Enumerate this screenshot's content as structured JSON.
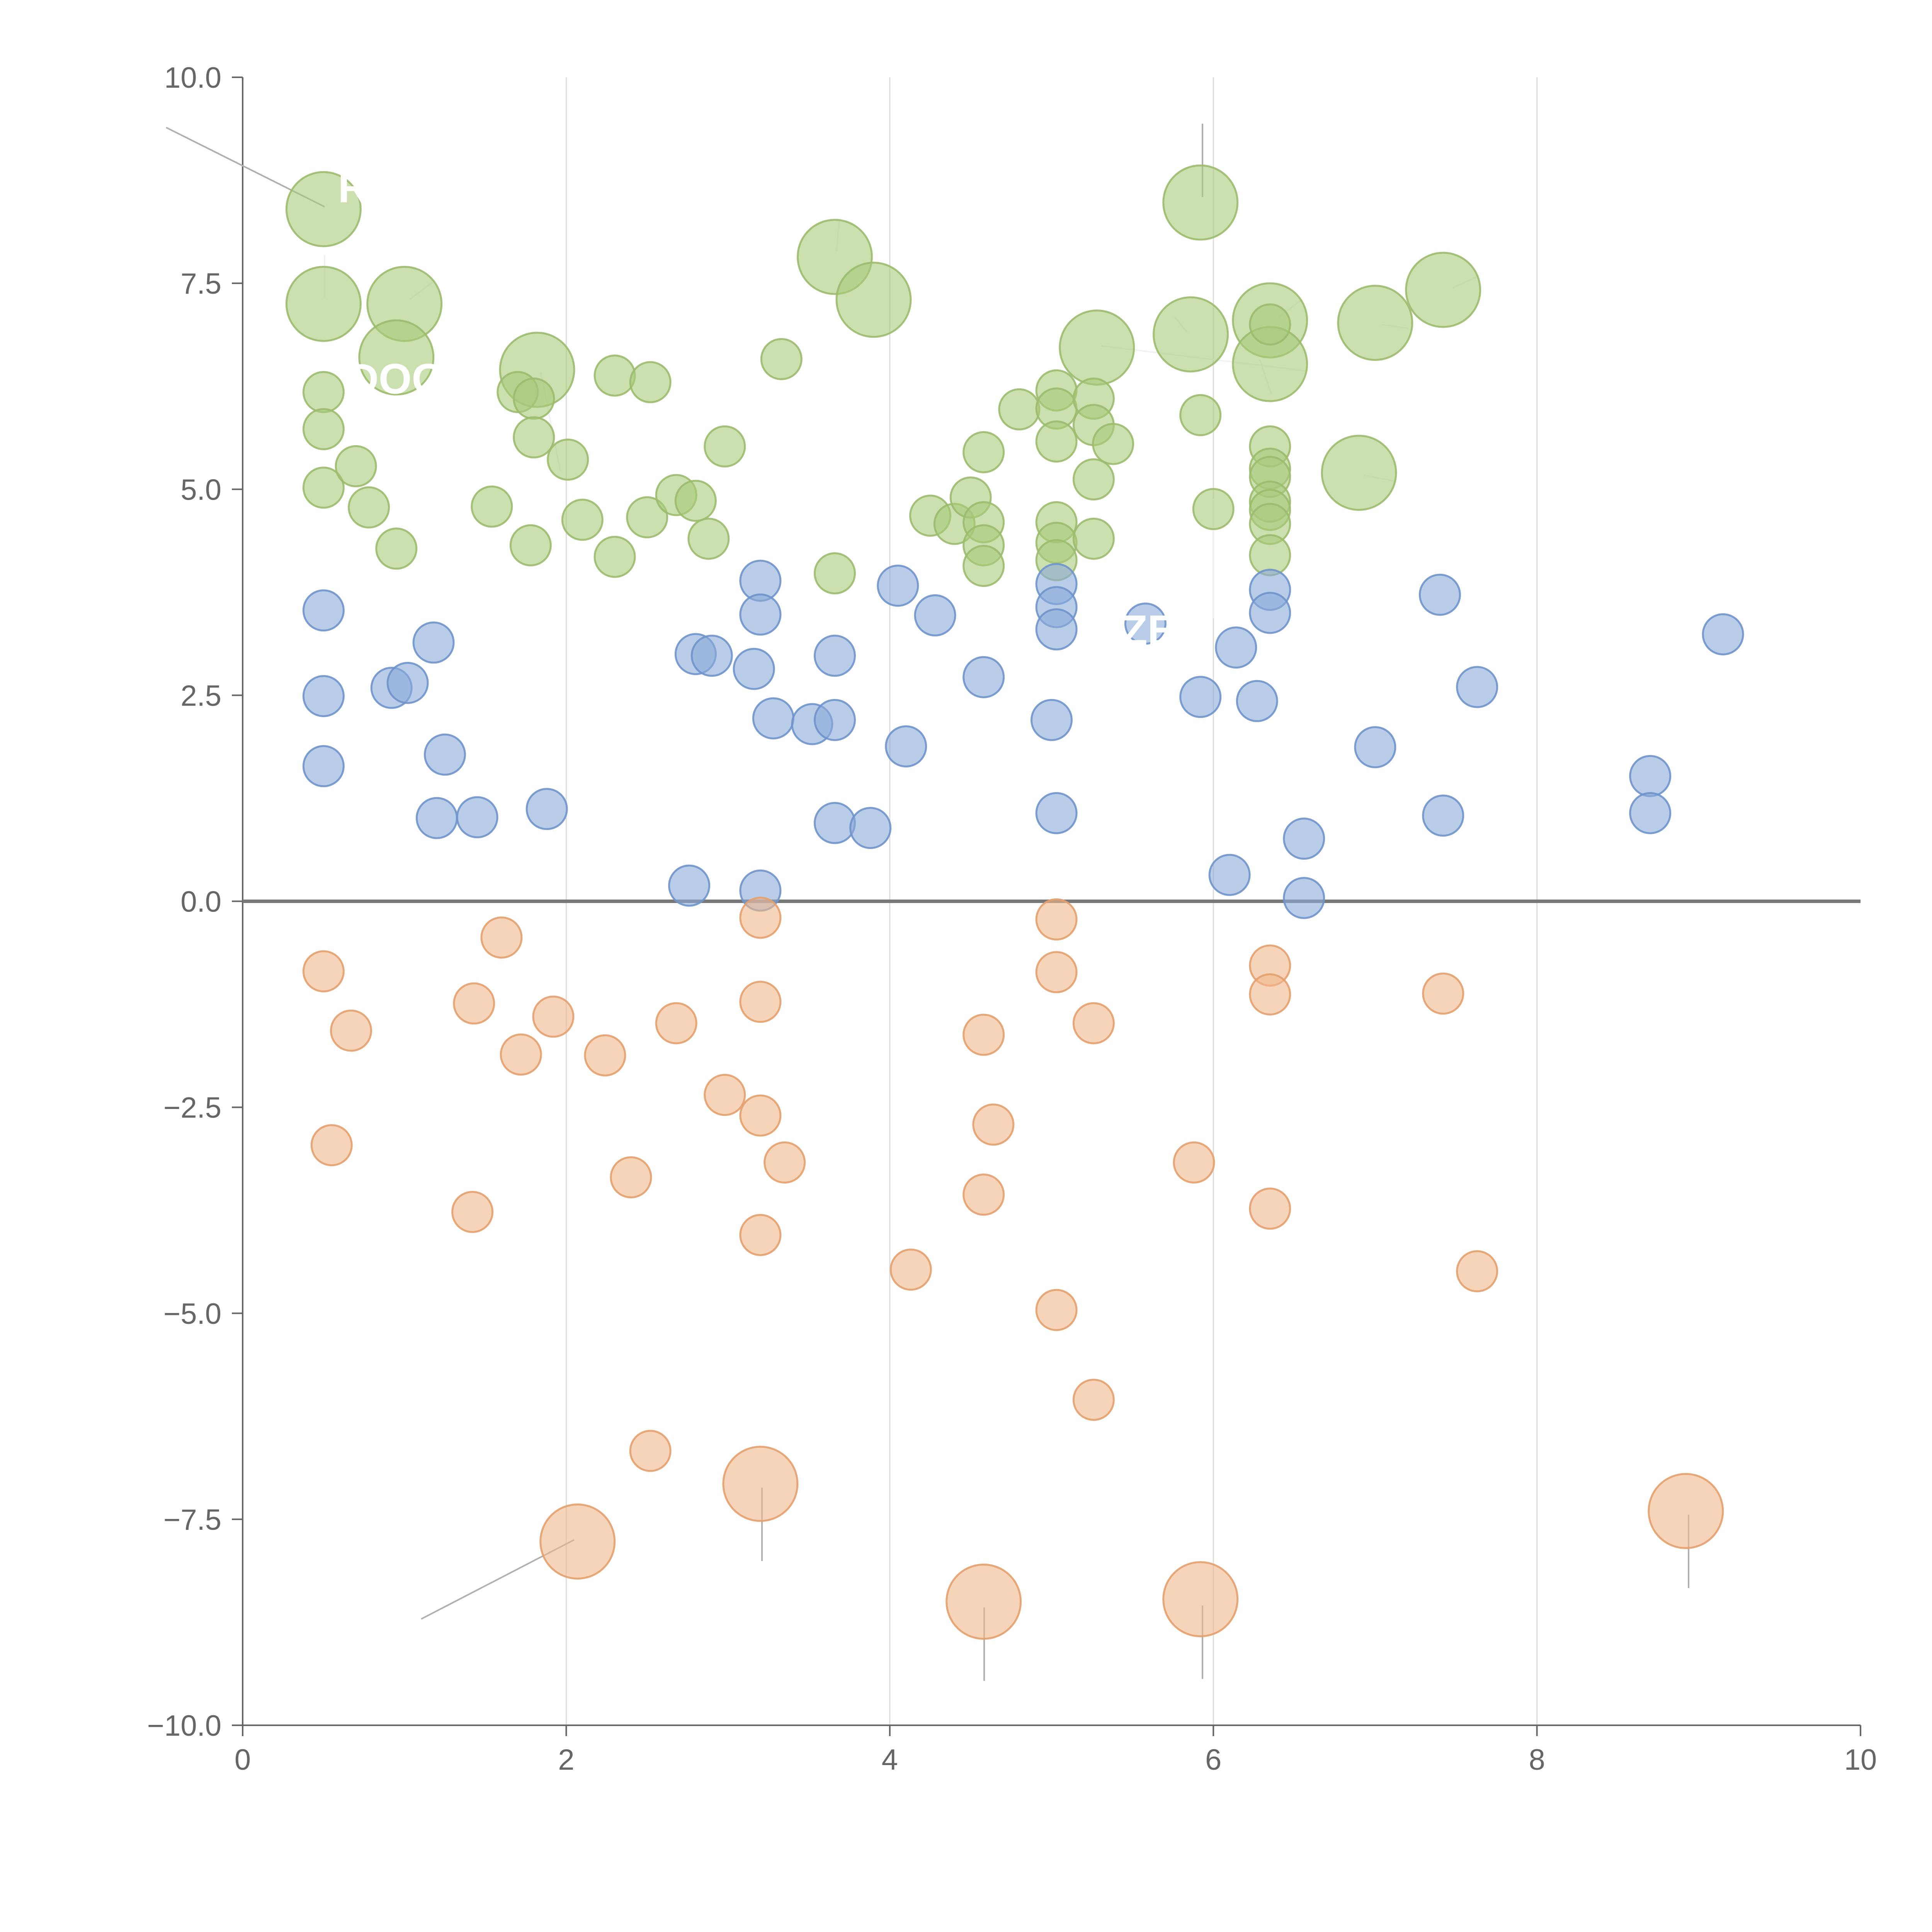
{
  "chart_data": {
    "type": "scatter",
    "title": "",
    "xlabel": "",
    "ylabel": "",
    "xlim": [
      0,
      10
    ],
    "ylim": [
      -10,
      10
    ],
    "x_ticks": [
      "0",
      "2",
      "4",
      "6",
      "8",
      "10"
    ],
    "y_ticks": [
      "−10.0",
      "−7.5",
      "−5.0",
      "−2.5",
      "0.0",
      "2.5",
      "5.0",
      "7.5",
      "10.0"
    ],
    "grid_x": [
      2,
      4,
      6,
      8
    ],
    "zero_line": 0,
    "series": [
      {
        "name": "green",
        "color": "#a9c97a",
        "stroke": "#9cbb6e",
        "points": [
          {
            "x": 0.5,
            "y": 8.4,
            "s": 3
          },
          {
            "x": 0.5,
            "y": 7.25,
            "s": 3
          },
          {
            "x": 1.0,
            "y": 7.25,
            "s": 3
          },
          {
            "x": 0.95,
            "y": 6.6,
            "s": 3
          },
          {
            "x": 1.82,
            "y": 6.45,
            "s": 3
          },
          {
            "x": 3.66,
            "y": 7.82,
            "s": 3
          },
          {
            "x": 3.9,
            "y": 7.3,
            "s": 3
          },
          {
            "x": 5.28,
            "y": 6.72,
            "s": 3
          },
          {
            "x": 5.86,
            "y": 6.88,
            "s": 3
          },
          {
            "x": 5.92,
            "y": 8.48,
            "s": 3
          },
          {
            "x": 6.35,
            "y": 7.05,
            "s": 3
          },
          {
            "x": 6.35,
            "y": 6.52,
            "s": 3
          },
          {
            "x": 7.0,
            "y": 7.02,
            "s": 3
          },
          {
            "x": 7.42,
            "y": 7.42,
            "s": 3
          },
          {
            "x": 6.9,
            "y": 5.2,
            "s": 3
          },
          {
            "x": 0.5,
            "y": 6.18,
            "s": 1
          },
          {
            "x": 0.5,
            "y": 5.73,
            "s": 1
          },
          {
            "x": 0.5,
            "y": 5.02,
            "s": 1
          },
          {
            "x": 0.7,
            "y": 5.28,
            "s": 1
          },
          {
            "x": 0.78,
            "y": 4.78,
            "s": 1
          },
          {
            "x": 0.95,
            "y": 4.28,
            "s": 1
          },
          {
            "x": 1.54,
            "y": 4.79,
            "s": 1
          },
          {
            "x": 1.7,
            "y": 6.18,
            "s": 1
          },
          {
            "x": 1.8,
            "y": 6.1,
            "s": 1
          },
          {
            "x": 1.8,
            "y": 5.63,
            "s": 1
          },
          {
            "x": 1.78,
            "y": 4.32,
            "s": 1
          },
          {
            "x": 2.01,
            "y": 5.36,
            "s": 1
          },
          {
            "x": 2.1,
            "y": 4.63,
            "s": 1
          },
          {
            "x": 2.3,
            "y": 6.38,
            "s": 1
          },
          {
            "x": 2.3,
            "y": 4.18,
            "s": 1
          },
          {
            "x": 2.5,
            "y": 4.66,
            "s": 1
          },
          {
            "x": 2.52,
            "y": 6.3,
            "s": 1
          },
          {
            "x": 2.68,
            "y": 4.93,
            "s": 1
          },
          {
            "x": 2.8,
            "y": 4.86,
            "s": 1
          },
          {
            "x": 2.88,
            "y": 4.4,
            "s": 1
          },
          {
            "x": 2.98,
            "y": 5.52,
            "s": 1
          },
          {
            "x": 3.33,
            "y": 6.58,
            "s": 1
          },
          {
            "x": 3.66,
            "y": 3.98,
            "s": 1
          },
          {
            "x": 4.25,
            "y": 4.68,
            "s": 1
          },
          {
            "x": 4.4,
            "y": 4.58,
            "s": 1
          },
          {
            "x": 4.5,
            "y": 4.9,
            "s": 1
          },
          {
            "x": 4.58,
            "y": 5.45,
            "s": 1
          },
          {
            "x": 4.58,
            "y": 4.6,
            "s": 1
          },
          {
            "x": 4.58,
            "y": 4.32,
            "s": 1
          },
          {
            "x": 4.58,
            "y": 4.07,
            "s": 1
          },
          {
            "x": 4.8,
            "y": 5.97,
            "s": 1
          },
          {
            "x": 5.03,
            "y": 6.2,
            "s": 1
          },
          {
            "x": 5.03,
            "y": 5.98,
            "s": 1
          },
          {
            "x": 5.03,
            "y": 5.58,
            "s": 1
          },
          {
            "x": 5.03,
            "y": 4.6,
            "s": 1
          },
          {
            "x": 5.03,
            "y": 4.35,
            "s": 1
          },
          {
            "x": 5.03,
            "y": 4.14,
            "s": 1
          },
          {
            "x": 5.26,
            "y": 6.1,
            "s": 1
          },
          {
            "x": 5.26,
            "y": 5.78,
            "s": 1
          },
          {
            "x": 5.38,
            "y": 5.55,
            "s": 1
          },
          {
            "x": 5.26,
            "y": 5.12,
            "s": 1
          },
          {
            "x": 5.26,
            "y": 4.4,
            "s": 1
          },
          {
            "x": 5.92,
            "y": 5.9,
            "s": 1
          },
          {
            "x": 6.0,
            "y": 4.76,
            "s": 1
          },
          {
            "x": 6.35,
            "y": 7.0,
            "s": 1
          },
          {
            "x": 6.35,
            "y": 5.52,
            "s": 1
          },
          {
            "x": 6.35,
            "y": 5.25,
            "s": 1
          },
          {
            "x": 6.35,
            "y": 5.15,
            "s": 1
          },
          {
            "x": 6.35,
            "y": 4.85,
            "s": 1
          },
          {
            "x": 6.35,
            "y": 4.75,
            "s": 1
          },
          {
            "x": 6.35,
            "y": 4.58,
            "s": 1
          },
          {
            "x": 6.35,
            "y": 4.2,
            "s": 1
          }
        ]
      },
      {
        "name": "blue",
        "color": "#8aaad8",
        "stroke": "#6f93cb",
        "points": [
          {
            "x": 0.5,
            "y": 3.53,
            "s": 1
          },
          {
            "x": 0.5,
            "y": 2.49,
            "s": 1
          },
          {
            "x": 0.5,
            "y": 1.64,
            "s": 1
          },
          {
            "x": 0.92,
            "y": 2.59,
            "s": 1
          },
          {
            "x": 1.02,
            "y": 2.65,
            "s": 1
          },
          {
            "x": 1.18,
            "y": 3.14,
            "s": 1
          },
          {
            "x": 1.25,
            "y": 1.78,
            "s": 1
          },
          {
            "x": 1.2,
            "y": 1.01,
            "s": 1
          },
          {
            "x": 1.45,
            "y": 1.02,
            "s": 1
          },
          {
            "x": 1.88,
            "y": 1.12,
            "s": 1
          },
          {
            "x": 2.76,
            "y": 0.19,
            "s": 1
          },
          {
            "x": 2.8,
            "y": 3.0,
            "s": 1
          },
          {
            "x": 2.9,
            "y": 2.98,
            "s": 1
          },
          {
            "x": 3.16,
            "y": 2.82,
            "s": 1
          },
          {
            "x": 3.2,
            "y": 3.89,
            "s": 1
          },
          {
            "x": 3.2,
            "y": 3.48,
            "s": 1
          },
          {
            "x": 3.28,
            "y": 2.22,
            "s": 1
          },
          {
            "x": 3.52,
            "y": 2.15,
            "s": 1
          },
          {
            "x": 3.66,
            "y": 2.98,
            "s": 1
          },
          {
            "x": 3.66,
            "y": 2.2,
            "s": 1
          },
          {
            "x": 3.66,
            "y": 0.95,
            "s": 1
          },
          {
            "x": 3.88,
            "y": 0.89,
            "s": 1
          },
          {
            "x": 3.2,
            "y": 0.13,
            "s": 1
          },
          {
            "x": 4.05,
            "y": 3.83,
            "s": 1
          },
          {
            "x": 4.1,
            "y": 1.88,
            "s": 1
          },
          {
            "x": 4.28,
            "y": 3.47,
            "s": 1
          },
          {
            "x": 4.58,
            "y": 2.72,
            "s": 1
          },
          {
            "x": 5.03,
            "y": 3.85,
            "s": 1
          },
          {
            "x": 5.03,
            "y": 3.57,
            "s": 1
          },
          {
            "x": 5.03,
            "y": 3.3,
            "s": 1
          },
          {
            "x": 5.0,
            "y": 2.2,
            "s": 1
          },
          {
            "x": 5.03,
            "y": 1.07,
            "s": 1
          },
          {
            "x": 5.58,
            "y": 3.37,
            "s": 1
          },
          {
            "x": 5.92,
            "y": 2.48,
            "s": 1
          },
          {
            "x": 6.1,
            "y": 0.32,
            "s": 1
          },
          {
            "x": 6.14,
            "y": 3.08,
            "s": 1
          },
          {
            "x": 6.27,
            "y": 2.43,
            "s": 1
          },
          {
            "x": 6.35,
            "y": 3.78,
            "s": 1
          },
          {
            "x": 6.35,
            "y": 3.5,
            "s": 1
          },
          {
            "x": 6.56,
            "y": 0.76,
            "s": 1
          },
          {
            "x": 6.56,
            "y": 0.04,
            "s": 1
          },
          {
            "x": 7.0,
            "y": 1.87,
            "s": 1
          },
          {
            "x": 7.4,
            "y": 3.72,
            "s": 1
          },
          {
            "x": 7.42,
            "y": 1.04,
            "s": 1
          },
          {
            "x": 7.63,
            "y": 2.6,
            "s": 1
          },
          {
            "x": 8.7,
            "y": 1.52,
            "s": 1
          },
          {
            "x": 8.7,
            "y": 1.07,
            "s": 1
          },
          {
            "x": 9.15,
            "y": 3.24,
            "s": 1
          }
        ]
      },
      {
        "name": "orange",
        "color": "#f0b88a",
        "stroke": "#e4a06e",
        "points": [
          {
            "x": 0.5,
            "y": -0.85,
            "s": 1
          },
          {
            "x": 0.67,
            "y": -1.57,
            "s": 1
          },
          {
            "x": 0.55,
            "y": -2.96,
            "s": 1
          },
          {
            "x": 1.43,
            "y": -1.24,
            "s": 1
          },
          {
            "x": 1.6,
            "y": -0.44,
            "s": 1
          },
          {
            "x": 1.42,
            "y": -3.77,
            "s": 1
          },
          {
            "x": 1.72,
            "y": -1.86,
            "s": 1
          },
          {
            "x": 1.92,
            "y": -1.4,
            "s": 1
          },
          {
            "x": 2.24,
            "y": -1.87,
            "s": 1
          },
          {
            "x": 2.4,
            "y": -3.35,
            "s": 1
          },
          {
            "x": 2.52,
            "y": -6.67,
            "s": 1
          },
          {
            "x": 2.68,
            "y": -1.48,
            "s": 1
          },
          {
            "x": 2.98,
            "y": -2.35,
            "s": 1
          },
          {
            "x": 3.2,
            "y": -0.2,
            "s": 1
          },
          {
            "x": 3.2,
            "y": -1.22,
            "s": 1
          },
          {
            "x": 3.2,
            "y": -2.6,
            "s": 1
          },
          {
            "x": 3.35,
            "y": -3.17,
            "s": 1
          },
          {
            "x": 3.2,
            "y": -4.05,
            "s": 1
          },
          {
            "x": 4.13,
            "y": -4.47,
            "s": 1
          },
          {
            "x": 4.58,
            "y": -1.62,
            "s": 1
          },
          {
            "x": 4.64,
            "y": -2.71,
            "s": 1
          },
          {
            "x": 4.58,
            "y": -3.56,
            "s": 1
          },
          {
            "x": 5.03,
            "y": -0.22,
            "s": 1
          },
          {
            "x": 5.03,
            "y": -0.86,
            "s": 1
          },
          {
            "x": 5.26,
            "y": -1.48,
            "s": 1
          },
          {
            "x": 5.03,
            "y": -4.96,
            "s": 1
          },
          {
            "x": 5.26,
            "y": -6.05,
            "s": 1
          },
          {
            "x": 5.88,
            "y": -3.17,
            "s": 1
          },
          {
            "x": 6.35,
            "y": -0.78,
            "s": 1
          },
          {
            "x": 6.35,
            "y": -1.13,
            "s": 1
          },
          {
            "x": 6.35,
            "y": -3.73,
            "s": 1
          },
          {
            "x": 7.42,
            "y": -1.12,
            "s": 1
          },
          {
            "x": 7.63,
            "y": -4.49,
            "s": 1
          },
          {
            "x": 2.07,
            "y": -7.77,
            "s": 3
          },
          {
            "x": 3.2,
            "y": -7.07,
            "s": 3
          },
          {
            "x": 4.58,
            "y": -8.5,
            "s": 3
          },
          {
            "x": 5.92,
            "y": -8.47,
            "s": 3
          },
          {
            "x": 8.92,
            "y": -7.4,
            "s": 3
          }
        ]
      }
    ],
    "annotations": [
      {
        "text": "RI",
        "x": 0.72,
        "y": 8.67
      },
      {
        "text": "DOG",
        "x": 0.95,
        "y": 6.35
      },
      {
        "text": "ZE",
        "x": 5.6,
        "y": 3.3
      }
    ]
  }
}
